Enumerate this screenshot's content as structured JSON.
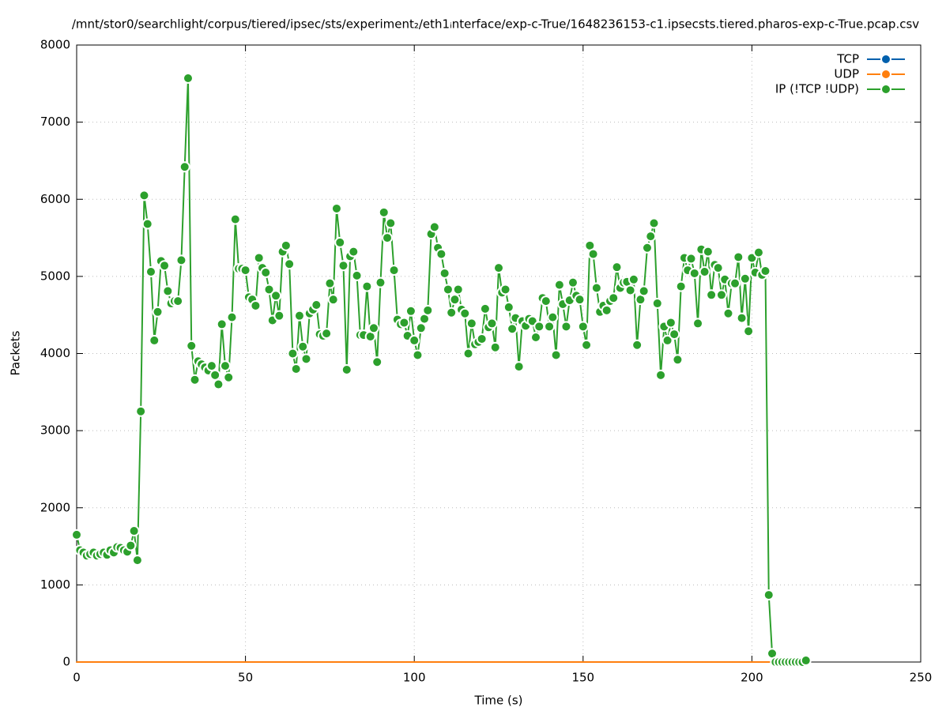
{
  "chart_data": {
    "type": "line",
    "title": "/mnt/stor0/searchlight/corpus/tiered/ipsec/sts/experiment₂/eth1ᵢnterface/exp-c-True/1648236153-c1.ipsecsts.tiered.pharos-exp-c-True.pcap.csv",
    "x_label": "Time (s)",
    "y_label": "Packets",
    "xlim": [
      0,
      250
    ],
    "xticks": [
      0,
      50,
      100,
      150,
      200,
      250
    ],
    "ylim": [
      0,
      8000
    ],
    "yticks": [
      0,
      1000,
      2000,
      3000,
      4000,
      5000,
      6000,
      7000,
      8000
    ],
    "grid": true,
    "legend": "upper right",
    "x": [
      0,
      1,
      2,
      3,
      4,
      5,
      6,
      7,
      8,
      9,
      10,
      11,
      12,
      13,
      14,
      15,
      16,
      17,
      18,
      19,
      20,
      21,
      22,
      23,
      24,
      25,
      26,
      27,
      28,
      29,
      30,
      31,
      32,
      33,
      34,
      35,
      36,
      37,
      38,
      39,
      40,
      41,
      42,
      43,
      44,
      45,
      46,
      47,
      48,
      49,
      50,
      51,
      52,
      53,
      54,
      55,
      56,
      57,
      58,
      59,
      60,
      61,
      62,
      63,
      64,
      65,
      66,
      67,
      68,
      69,
      70,
      71,
      72,
      73,
      74,
      75,
      76,
      77,
      78,
      79,
      80,
      81,
      82,
      83,
      84,
      85,
      86,
      87,
      88,
      89,
      90,
      91,
      92,
      93,
      94,
      95,
      96,
      97,
      98,
      99,
      100,
      101,
      102,
      103,
      104,
      105,
      106,
      107,
      108,
      109,
      110,
      111,
      112,
      113,
      114,
      115,
      116,
      117,
      118,
      119,
      120,
      121,
      122,
      123,
      124,
      125,
      126,
      127,
      128,
      129,
      130,
      131,
      132,
      133,
      134,
      135,
      136,
      137,
      138,
      139,
      140,
      141,
      142,
      143,
      144,
      145,
      146,
      147,
      148,
      149,
      150,
      151,
      152,
      153,
      154,
      155,
      156,
      157,
      158,
      159,
      160,
      161,
      162,
      163,
      164,
      165,
      166,
      167,
      168,
      169,
      170,
      171,
      172,
      173,
      174,
      175,
      176,
      177,
      178,
      179,
      180,
      181,
      182,
      183,
      184,
      185,
      186,
      187,
      188,
      189,
      190,
      191,
      192,
      193,
      194,
      195,
      196,
      197,
      198,
      199,
      200,
      201,
      202,
      203,
      204,
      205,
      206,
      207,
      208,
      209,
      210,
      211,
      212,
      213,
      214,
      215,
      216
    ],
    "series": [
      {
        "name": "TCP",
        "color": "#0060ad",
        "values": [
          0,
          0,
          0,
          0,
          0,
          0,
          0,
          0,
          0,
          0,
          0,
          0,
          0,
          0,
          0,
          0,
          0,
          0,
          0,
          0,
          0,
          0,
          0,
          0,
          0,
          0,
          0,
          0,
          0,
          0,
          0,
          0,
          0,
          0,
          0,
          0,
          0,
          0,
          0,
          0,
          0,
          0,
          0,
          0,
          0,
          0,
          0,
          0,
          0,
          0,
          0,
          0,
          0,
          0,
          0,
          0,
          0,
          0,
          0,
          0,
          0,
          0,
          0,
          0,
          0,
          0,
          0,
          0,
          0,
          0,
          0,
          0,
          0,
          0,
          0,
          0,
          0,
          0,
          0,
          0,
          0,
          0,
          0,
          0,
          0,
          0,
          0,
          0,
          0,
          0,
          0,
          0,
          0,
          0,
          0,
          0,
          0,
          0,
          0,
          0,
          0,
          0,
          0,
          0,
          0,
          0,
          0,
          0,
          0,
          0,
          0,
          0,
          0,
          0,
          0,
          0,
          0,
          0,
          0,
          0,
          0,
          0,
          0,
          0,
          0,
          0,
          0,
          0,
          0,
          0,
          0,
          0,
          0,
          0,
          0,
          0,
          0,
          0,
          0,
          0,
          0,
          0,
          0,
          0,
          0,
          0,
          0,
          0,
          0,
          0,
          0,
          0,
          0,
          0,
          0,
          0,
          0,
          0,
          0,
          0,
          0,
          0,
          0,
          0,
          0,
          0,
          0,
          0,
          0,
          0,
          0,
          0,
          0,
          0,
          0,
          0,
          0,
          0,
          0,
          0,
          0,
          0,
          0,
          0,
          0,
          0,
          0,
          0,
          0,
          0,
          0,
          0,
          0,
          0,
          0,
          0,
          0,
          0,
          0,
          0,
          0,
          0,
          0,
          0,
          0,
          0,
          0,
          0,
          0,
          0,
          0,
          0,
          0,
          0,
          0,
          0,
          0
        ]
      },
      {
        "name": "UDP",
        "color": "#ff7f0e",
        "values": [
          0,
          0,
          0,
          0,
          0,
          0,
          0,
          0,
          0,
          0,
          0,
          0,
          0,
          0,
          0,
          0,
          0,
          0,
          0,
          0,
          0,
          0,
          0,
          0,
          0,
          0,
          0,
          0,
          0,
          0,
          0,
          0,
          0,
          0,
          0,
          0,
          0,
          0,
          0,
          0,
          0,
          0,
          0,
          0,
          0,
          0,
          0,
          0,
          0,
          0,
          0,
          0,
          0,
          0,
          0,
          0,
          0,
          0,
          0,
          0,
          0,
          0,
          0,
          0,
          0,
          0,
          0,
          0,
          0,
          0,
          0,
          0,
          0,
          0,
          0,
          0,
          0,
          0,
          0,
          0,
          0,
          0,
          0,
          0,
          0,
          0,
          0,
          0,
          0,
          0,
          0,
          0,
          0,
          0,
          0,
          0,
          0,
          0,
          0,
          0,
          0,
          0,
          0,
          0,
          0,
          0,
          0,
          0,
          0,
          0,
          0,
          0,
          0,
          0,
          0,
          0,
          0,
          0,
          0,
          0,
          0,
          0,
          0,
          0,
          0,
          0,
          0,
          0,
          0,
          0,
          0,
          0,
          0,
          0,
          0,
          0,
          0,
          0,
          0,
          0,
          0,
          0,
          0,
          0,
          0,
          0,
          0,
          0,
          0,
          0,
          0,
          0,
          0,
          0,
          0,
          0,
          0,
          0,
          0,
          0,
          0,
          0,
          0,
          0,
          0,
          0,
          0,
          0,
          0,
          0,
          0,
          0,
          0,
          0,
          0,
          0,
          0,
          0,
          0,
          0,
          0,
          0,
          0,
          0,
          0,
          0,
          0,
          0,
          0,
          0,
          0,
          0,
          0,
          0,
          0,
          0,
          0,
          0,
          0,
          0,
          0,
          0,
          0,
          0,
          0,
          0,
          0,
          0,
          0,
          0,
          0,
          0,
          0,
          0,
          0,
          0,
          0
        ]
      },
      {
        "name": "IP (!TCP  !UDP)",
        "color": "#2ca02c",
        "values": [
          1650,
          1450,
          1420,
          1380,
          1400,
          1420,
          1380,
          1400,
          1420,
          1390,
          1450,
          1420,
          1490,
          1480,
          1450,
          1430,
          1510,
          1700,
          1320,
          3250,
          6050,
          5680,
          5060,
          4170,
          4540,
          5200,
          5140,
          4810,
          4650,
          4680,
          4680,
          5210,
          6420,
          7570,
          4100,
          3660,
          3900,
          3860,
          3820,
          3780,
          3840,
          3720,
          3600,
          4380,
          3840,
          3690,
          4470,
          5740,
          5100,
          5100,
          5080,
          4730,
          4700,
          4620,
          5240,
          5110,
          5050,
          4830,
          4430,
          4750,
          4490,
          5320,
          5400,
          5160,
          4000,
          3800,
          4490,
          4090,
          3930,
          4520,
          4570,
          4630,
          4250,
          4230,
          4260,
          4910,
          4700,
          5880,
          5440,
          5140,
          3790,
          5260,
          5320,
          5010,
          4240,
          4240,
          4870,
          4220,
          4330,
          3890,
          4920,
          5830,
          5500,
          5690,
          5080,
          4440,
          4380,
          4400,
          4230,
          4550,
          4170,
          3980,
          4330,
          4450,
          4560,
          5550,
          5640,
          5370,
          5290,
          5040,
          4830,
          4530,
          4700,
          4830,
          4570,
          4520,
          4000,
          4390,
          4120,
          4150,
          4190,
          4580,
          4340,
          4390,
          4080,
          5110,
          4790,
          4830,
          4600,
          4320,
          4460,
          3830,
          4420,
          4360,
          4450,
          4420,
          4210,
          4350,
          4720,
          4680,
          4350,
          4470,
          3980,
          4890,
          4640,
          4350,
          4690,
          4920,
          4750,
          4700,
          4350,
          4110,
          5400,
          5290,
          4850,
          4540,
          4620,
          4560,
          4680,
          4720,
          5120,
          4850,
          4920,
          4930,
          4820,
          4960,
          4110,
          4700,
          4810,
          5370,
          5520,
          5690,
          4650,
          3720,
          4350,
          4170,
          4400,
          4250,
          3920,
          4870,
          5240,
          5080,
          5230,
          5040,
          4390,
          5350,
          5060,
          5320,
          4760,
          5150,
          5110,
          4760,
          4960,
          4520,
          4910,
          4910,
          5250,
          4460,
          4970,
          4290,
          5240,
          5050,
          5310,
          5020,
          5070,
          870,
          110,
          0,
          0,
          0,
          0,
          0,
          0,
          0,
          0,
          0,
          20
        ]
      }
    ]
  }
}
